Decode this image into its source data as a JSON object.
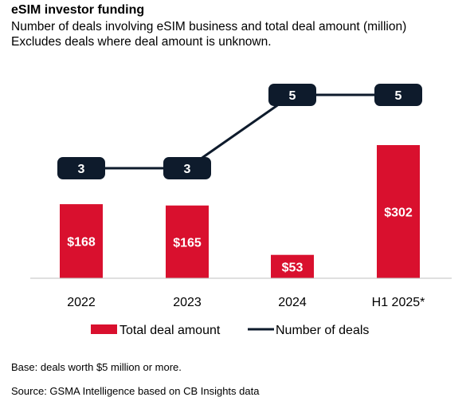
{
  "header": {
    "title": "eSIM investor funding",
    "subtitle_line1": "Number of deals involving eSIM business and total deal amount (million)",
    "subtitle_line2": "Excludes deals where deal amount is unknown."
  },
  "footer": {
    "base": "Base: deals worth $5 million or more.",
    "source": "Source: GSMA Intelligence based on CB Insights data"
  },
  "colors": {
    "bar": "#d9102e",
    "line": "#0e1b2c",
    "bar_label": "#ffffff",
    "deal_label": "#ffffff"
  },
  "chart_data": {
    "type": "bar",
    "categories": [
      "2022",
      "2023",
      "2024",
      "H1 2025*"
    ],
    "series": [
      {
        "name": "Total deal amount",
        "type": "bar",
        "values": [
          168,
          165,
          53,
          302
        ],
        "labels": [
          "$168",
          "$165",
          "$53",
          "$302"
        ]
      },
      {
        "name": "Number of deals",
        "type": "line",
        "values": [
          3,
          3,
          5,
          5
        ],
        "labels": [
          "3",
          "3",
          "5",
          "5"
        ]
      }
    ],
    "legend_position": "bottom",
    "grid": false
  }
}
